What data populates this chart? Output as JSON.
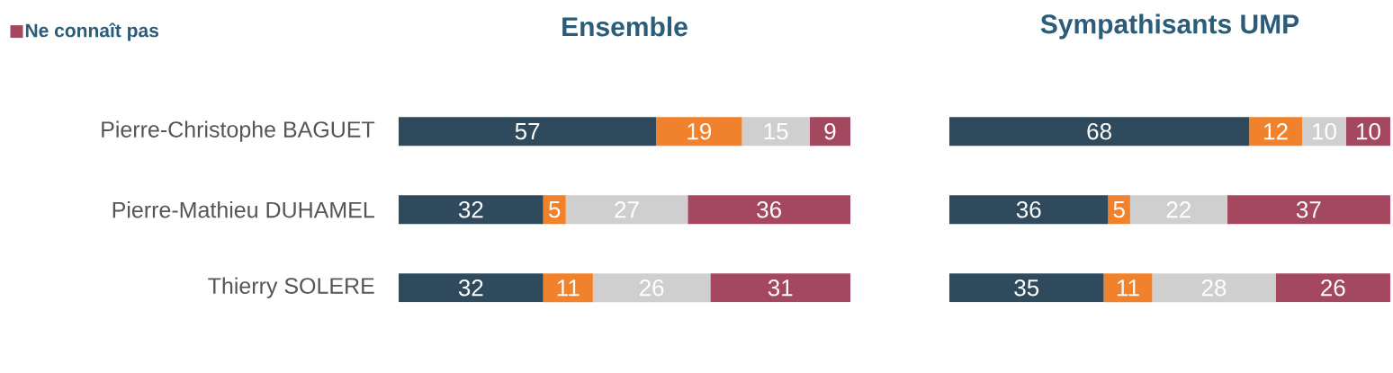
{
  "chart_data": [
    {
      "type": "bar",
      "orientation": "horizontal",
      "stacked": true,
      "title": "Ensemble",
      "categories": [
        "Pierre-Christophe BAGUET",
        "Pierre-Mathieu DUHAMEL",
        "Thierry SOLERE"
      ],
      "data_labels": true,
      "legend": "top left",
      "tick_labels": "y",
      "series": [
        {
          "color": "#2e4a5c",
          "values": [
            57,
            32,
            32
          ]
        },
        {
          "color": "#f0822e",
          "values": [
            19,
            5,
            11
          ]
        },
        {
          "color": "#cfcfcf",
          "values": [
            15,
            27,
            26
          ]
        },
        {
          "name": "Ne connaît pas",
          "color": "#a3485f",
          "values": [
            9,
            36,
            31
          ]
        }
      ]
    },
    {
      "type": "bar",
      "orientation": "horizontal",
      "stacked": true,
      "title": "Sympathisants UMP",
      "categories": [
        null,
        null,
        null
      ],
      "data_labels": true,
      "tick_labels": false,
      "series": [
        {
          "color": "#2e4a5c",
          "values": [
            68,
            36,
            35
          ]
        },
        {
          "color": "#f0822e",
          "values": [
            12,
            5,
            11
          ]
        },
        {
          "color": "#cfcfcf",
          "values": [
            10,
            22,
            28
          ]
        },
        {
          "color": "#a3485f",
          "values": [
            10,
            37,
            26
          ]
        }
      ]
    }
  ]
}
